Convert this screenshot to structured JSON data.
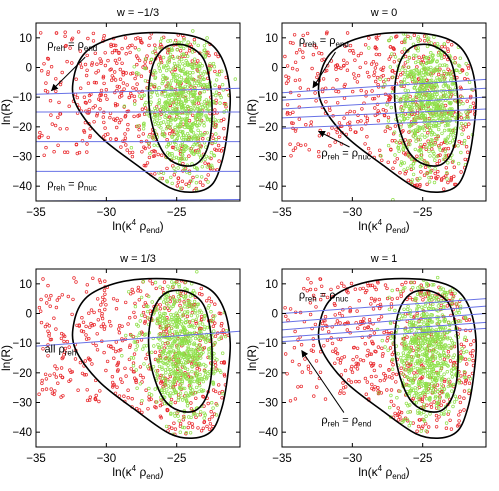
{
  "chart_data": [
    {
      "type": "scatter",
      "title": "w = −1/3",
      "xlabel": {
        "base": "ln(κ",
        "sup": "4",
        "mid": " ρ",
        "sub": "end",
        "end": ")"
      },
      "ylabel": "ln(R)",
      "xlim": [
        -35,
        -20.5
      ],
      "ylim": [
        -45,
        15
      ],
      "xticks": [
        -35,
        -30,
        -25
      ],
      "xtick_labels": [
        "−35",
        "−30",
        "−25"
      ],
      "yticks": [
        10,
        0,
        -10,
        -20,
        -30,
        -40
      ],
      "ytick_labels": [
        "10",
        "0",
        "−10",
        "−20",
        "−30",
        "−40"
      ],
      "lines": [
        [
          -35,
          -9,
          -20.5,
          -7
        ],
        [
          -35,
          -15,
          -20.5,
          -15
        ],
        [
          -35,
          -25,
          -20.5,
          -25
        ],
        [
          -35,
          -35,
          -20.5,
          -35
        ],
        [
          -35,
          -45,
          -20.5,
          -44.5
        ]
      ],
      "annotations": [
        {
          "parts": [
            "ρ",
            "reh",
            " = ρ",
            "end"
          ],
          "x": -34.2,
          "y": 6.5,
          "arrow": [
            -31.5,
            3.5,
            -33.9,
            -7.8
          ]
        },
        {
          "parts": [
            "ρ",
            "reh",
            " = ρ",
            "nuc"
          ],
          "x": -34.2,
          "y": -40.5
        }
      ],
      "seed": 11
    },
    {
      "type": "scatter",
      "title": "w = 0",
      "xlabel": {
        "base": "ln(κ",
        "sup": "4",
        "mid": " ρ",
        "sub": "end",
        "end": ")"
      },
      "ylabel": "ln(R)",
      "xlim": [
        -35,
        -20.5
      ],
      "ylim": [
        -45,
        15
      ],
      "xticks": [
        -35,
        -30,
        -25
      ],
      "xtick_labels": [
        "−35",
        "−30",
        "−25"
      ],
      "yticks": [
        10,
        0,
        -10,
        -20,
        -30,
        -40
      ],
      "ytick_labels": [
        "10",
        "0",
        "−10",
        "−20",
        "−30",
        "−40"
      ],
      "lines": [
        [
          -35,
          -8.5,
          -20.5,
          -4
        ],
        [
          -35,
          -11,
          -20.5,
          -7
        ],
        [
          -35,
          -14,
          -20.5,
          -10
        ],
        [
          -35,
          -17,
          -20.5,
          -14
        ],
        [
          -35,
          -20.5,
          -20.5,
          -17.5
        ]
      ],
      "annotations": [
        {
          "parts": [
            "ρ",
            "reh",
            " = ρ",
            "end"
          ],
          "x": -33.8,
          "y": 8,
          "arrow": [
            -31.2,
            5.2,
            -32.8,
            -6.8
          ]
        },
        {
          "parts": [
            "ρ",
            "reh",
            " = ρ",
            "nuc"
          ],
          "x": -32.2,
          "y": -30,
          "arrow": [
            -30.2,
            -26.8,
            -32.4,
            -21.5
          ]
        }
      ],
      "seed": 23
    },
    {
      "type": "scatter",
      "title": "w = 1/3",
      "xlabel": {
        "base": "ln(κ",
        "sup": "4",
        "mid": " ρ",
        "sub": "end",
        "end": ")"
      },
      "ylabel": "ln(R)",
      "xlim": [
        -35,
        -20.5
      ],
      "ylim": [
        -45,
        15
      ],
      "xticks": [
        -35,
        -30,
        -25
      ],
      "xtick_labels": [
        "−35",
        "−30",
        "−25"
      ],
      "yticks": [
        10,
        0,
        -10,
        -20,
        -30,
        -40
      ],
      "ytick_labels": [
        "10",
        "0",
        "−10",
        "−20",
        "−30",
        "−40"
      ],
      "lines": [
        [
          -35,
          -11,
          -20.5,
          -6
        ]
      ],
      "annotations": [
        {
          "parts": [
            "all ρ",
            "reh"
          ],
          "x": -34.4,
          "y": -13.2
        }
      ],
      "seed": 37
    },
    {
      "type": "scatter",
      "title": "w = 1",
      "xlabel": {
        "base": "ln(κ",
        "sup": "4",
        "mid": " ρ",
        "sub": "end",
        "end": ")"
      },
      "ylabel": "ln(R)",
      "xlim": [
        -35,
        -20.5
      ],
      "ylim": [
        -45,
        15
      ],
      "xticks": [
        -35,
        -30,
        -25
      ],
      "xtick_labels": [
        "−35",
        "−30",
        "−25"
      ],
      "yticks": [
        10,
        0,
        -10,
        -20,
        -30,
        -40
      ],
      "ytick_labels": [
        "10",
        "0",
        "−10",
        "−20",
        "−30",
        "−40"
      ],
      "lines": [
        [
          -35,
          0,
          -20.5,
          5
        ],
        [
          -35,
          -3,
          -20.5,
          2.5
        ],
        [
          -35,
          -5.5,
          -20.5,
          0
        ],
        [
          -35,
          -8,
          -20.5,
          -3
        ],
        [
          -35,
          -9.5,
          -20.5,
          -5
        ]
      ],
      "annotations": [
        {
          "parts": [
            "ρ",
            "reh",
            " = ρ",
            "nuc"
          ],
          "x": -33.8,
          "y": 5
        },
        {
          "parts": [
            "ρ",
            "reh",
            " = ρ",
            "end"
          ],
          "x": -32.2,
          "y": -37,
          "arrow": [
            -30.6,
            -33.4,
            -33.6,
            -12.5
          ]
        }
      ],
      "seed": 51
    }
  ],
  "colors": {
    "red_points": "#e8262a",
    "green_points": "#8fe04a",
    "lines": "#6872e6",
    "contours": "#000000"
  }
}
